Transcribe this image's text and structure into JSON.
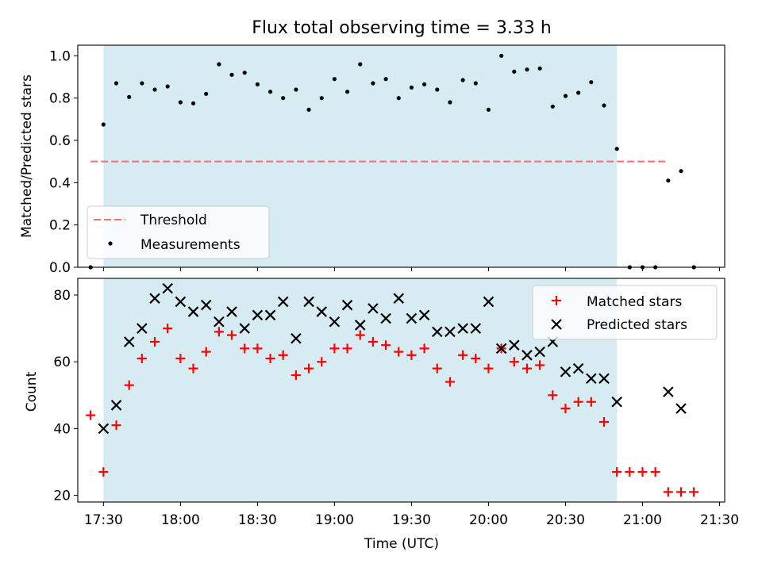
{
  "chart_data": [
    {
      "type": "scatter",
      "title": "Flux total observing time = 3.33 h",
      "ylabel": "Matched/Predicted stars",
      "xlim": [
        "17:20",
        "21:32"
      ],
      "ylim": [
        0,
        1.05
      ],
      "yticks": [
        "0.0",
        "0.2",
        "0.4",
        "0.6",
        "0.8",
        "1.0"
      ],
      "yticks_values": [
        0,
        0.2,
        0.4,
        0.6,
        0.8,
        1.0
      ],
      "shaded_interval": [
        "17:30",
        "20:50"
      ],
      "legend_position": "lower-left",
      "threshold": {
        "label": "Threshold",
        "value": 0.5,
        "x_range": [
          "17:25",
          "21:10"
        ],
        "color": "#f27070"
      },
      "series": [
        {
          "name": "Measurements",
          "color": "#000000",
          "x": [
            "17:25",
            "17:30",
            "17:35",
            "17:40",
            "17:45",
            "17:50",
            "17:55",
            "18:00",
            "18:05",
            "18:10",
            "18:15",
            "18:20",
            "18:25",
            "18:30",
            "18:35",
            "18:40",
            "18:45",
            "18:50",
            "18:55",
            "19:00",
            "19:05",
            "19:10",
            "19:15",
            "19:20",
            "19:25",
            "19:30",
            "19:35",
            "19:40",
            "19:45",
            "19:50",
            "19:55",
            "20:00",
            "20:05",
            "20:10",
            "20:15",
            "20:20",
            "20:25",
            "20:30",
            "20:35",
            "20:40",
            "20:45",
            "20:50",
            "20:55",
            "21:00",
            "21:05",
            "21:10",
            "21:15",
            "21:20"
          ],
          "y": [
            0.0,
            0.675,
            0.87,
            0.805,
            0.87,
            0.84,
            0.855,
            0.78,
            0.775,
            0.82,
            0.96,
            0.91,
            0.92,
            0.865,
            0.83,
            0.8,
            0.84,
            0.745,
            0.8,
            0.89,
            0.83,
            0.96,
            0.87,
            0.89,
            0.8,
            0.85,
            0.865,
            0.84,
            0.78,
            0.885,
            0.87,
            0.745,
            1.0,
            0.925,
            0.935,
            0.94,
            0.76,
            0.81,
            0.825,
            0.875,
            0.765,
            0.56,
            0.0,
            0.0,
            0.0,
            0.41,
            0.455,
            0.0
          ]
        }
      ]
    },
    {
      "type": "scatter",
      "xlabel": "Time (UTC)",
      "ylabel": "Count",
      "xlim": [
        "17:20",
        "21:32"
      ],
      "ylim": [
        18,
        85
      ],
      "xticks": [
        "17:30",
        "18:00",
        "18:30",
        "19:00",
        "19:30",
        "20:00",
        "20:30",
        "21:00",
        "21:30"
      ],
      "yticks": [
        "20",
        "40",
        "60",
        "80"
      ],
      "yticks_values": [
        20,
        40,
        60,
        80
      ],
      "shaded_interval": [
        "17:30",
        "20:50"
      ],
      "legend_position": "upper-right",
      "series": [
        {
          "name": "Matched stars",
          "marker": "plus",
          "color": "#ff0000",
          "x": [
            "17:25",
            "17:30",
            "17:35",
            "17:40",
            "17:45",
            "17:50",
            "17:55",
            "18:00",
            "18:05",
            "18:10",
            "18:15",
            "18:20",
            "18:25",
            "18:30",
            "18:35",
            "18:40",
            "18:45",
            "18:50",
            "18:55",
            "19:00",
            "19:05",
            "19:10",
            "19:15",
            "19:20",
            "19:25",
            "19:30",
            "19:35",
            "19:40",
            "19:45",
            "19:50",
            "19:55",
            "20:00",
            "20:05",
            "20:10",
            "20:15",
            "20:20",
            "20:25",
            "20:30",
            "20:35",
            "20:40",
            "20:45",
            "20:50",
            "20:55",
            "21:00",
            "21:05",
            "21:10",
            "21:15",
            "21:20"
          ],
          "y": [
            44,
            27,
            41,
            53,
            61,
            66,
            70,
            61,
            58,
            63,
            69,
            68,
            64,
            64,
            61,
            62,
            56,
            58,
            60,
            64,
            64,
            68,
            66,
            65,
            63,
            62,
            64,
            58,
            54,
            62,
            61,
            58,
            64,
            60,
            58,
            59,
            50,
            46,
            48,
            48,
            42,
            27,
            27,
            27,
            27,
            21,
            21,
            21
          ]
        },
        {
          "name": "Predicted stars",
          "marker": "x",
          "color": "#000000",
          "x": [
            "17:30",
            "17:35",
            "17:40",
            "17:45",
            "17:50",
            "17:55",
            "18:00",
            "18:05",
            "18:10",
            "18:15",
            "18:20",
            "18:25",
            "18:30",
            "18:35",
            "18:40",
            "18:45",
            "18:50",
            "18:55",
            "19:00",
            "19:05",
            "19:10",
            "19:15",
            "19:20",
            "19:25",
            "19:30",
            "19:35",
            "19:40",
            "19:45",
            "19:50",
            "19:55",
            "20:00",
            "20:05",
            "20:10",
            "20:15",
            "20:20",
            "20:25",
            "20:30",
            "20:35",
            "20:40",
            "20:45",
            "20:50",
            "21:10",
            "21:15"
          ],
          "y": [
            40,
            47,
            66,
            70,
            79,
            82,
            78,
            75,
            77,
            72,
            75,
            70,
            74,
            74,
            78,
            67,
            78,
            75,
            72,
            77,
            71,
            76,
            73,
            79,
            73,
            74,
            69,
            69,
            70,
            70,
            78,
            64,
            65,
            62,
            63,
            66,
            57,
            58,
            55,
            55,
            48,
            51,
            46
          ]
        }
      ]
    }
  ]
}
